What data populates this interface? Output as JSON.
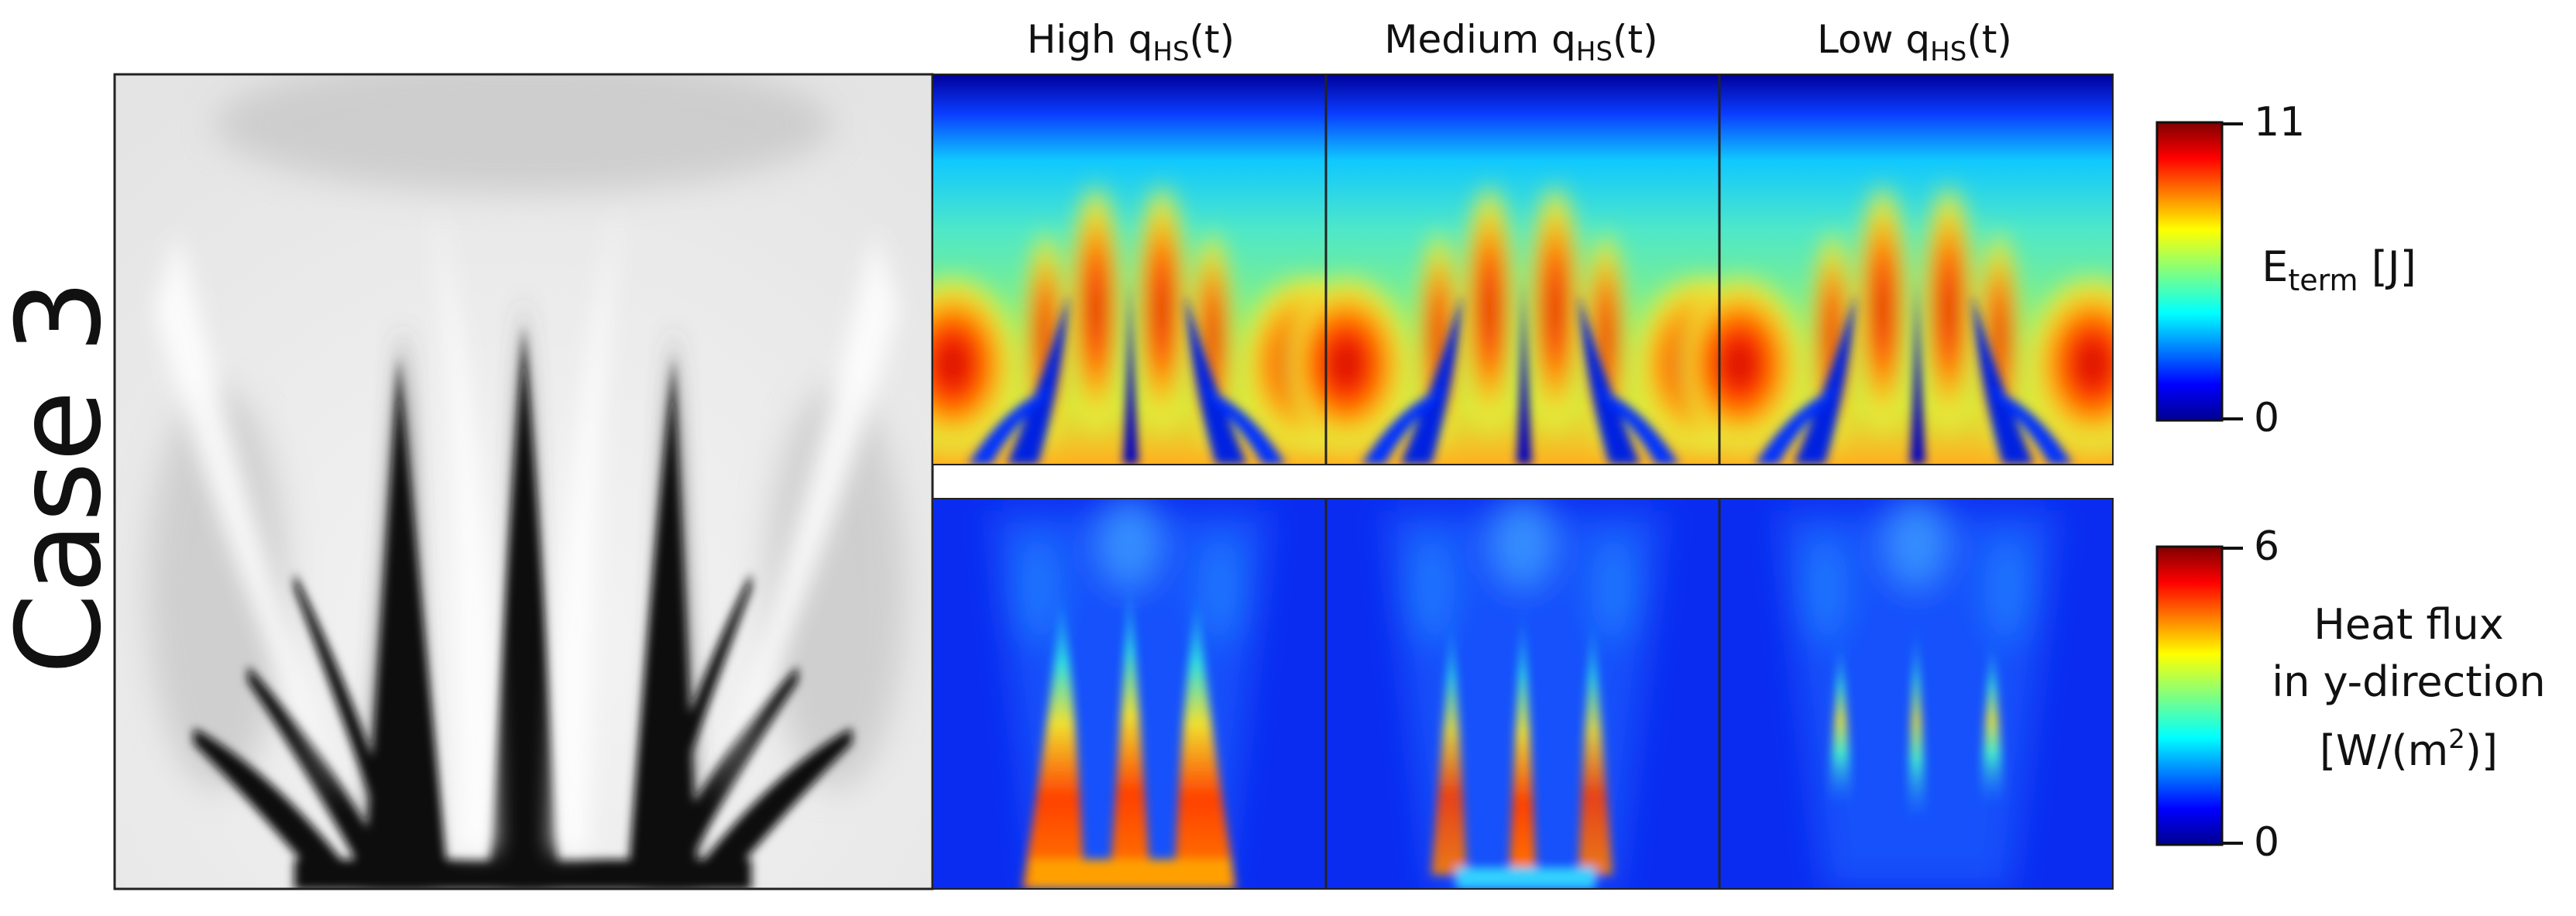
{
  "row_label": "Case 3",
  "columns": [
    {
      "prefix": "High q",
      "sub": "HS",
      "suffix": "(t)"
    },
    {
      "prefix": "Medium q",
      "sub": "HS",
      "suffix": "(t)"
    },
    {
      "prefix": "Low q",
      "sub": "HS",
      "suffix": "(t)"
    }
  ],
  "colorbars": [
    {
      "max_label": "11",
      "min_label": "0",
      "label_main": "E",
      "label_sub": "term",
      "label_unit": " [J]"
    },
    {
      "max_label": "6",
      "min_label": "0",
      "line1": "Heat flux",
      "line2": "in y-direction",
      "line3_pre": "[W/(m",
      "line3_sup": "2",
      "line3_post": ")]"
    }
  ],
  "colormap": "jet",
  "colors": {
    "tick": "#111111",
    "frame": "#222222"
  }
}
